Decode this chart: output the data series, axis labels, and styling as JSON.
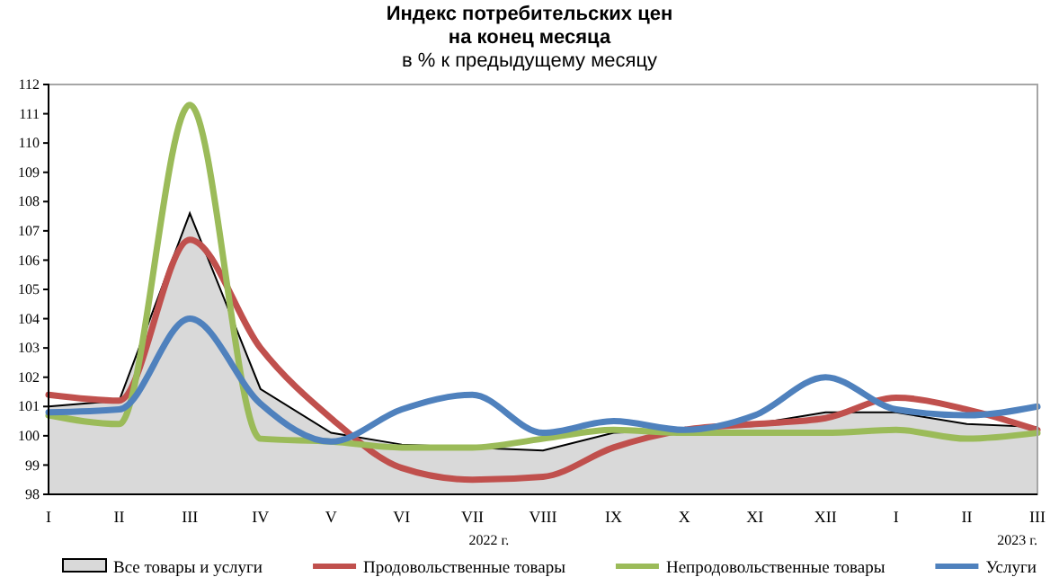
{
  "chart_data": {
    "type": "line",
    "title": "Индекс потребительских цен\nна конец месяца",
    "subtitle": "в % к предыдущему месяцу",
    "categories": [
      "I",
      "II",
      "III",
      "IV",
      "V",
      "VI",
      "VII",
      "VIII",
      "IX",
      "X",
      "XI",
      "XII",
      "I",
      "II",
      "III"
    ],
    "series": [
      {
        "name": "Все товары и услуги",
        "type": "area",
        "color": "#d9d9d9",
        "values": [
          101.0,
          101.2,
          107.6,
          101.6,
          100.1,
          99.7,
          99.6,
          99.5,
          100.1,
          100.2,
          100.4,
          100.8,
          100.8,
          100.4,
          100.3
        ]
      },
      {
        "name": "Продовольственные товары",
        "color": "#c0504d",
        "values": [
          101.4,
          101.2,
          106.7,
          103.0,
          100.6,
          98.9,
          98.5,
          98.6,
          99.6,
          100.2,
          100.4,
          100.6,
          101.3,
          100.9,
          100.2
        ]
      },
      {
        "name": "Непродовольственные товары",
        "color": "#9bbb59",
        "values": [
          100.7,
          100.4,
          111.3,
          99.9,
          99.8,
          99.6,
          99.6,
          99.9,
          100.2,
          100.1,
          100.1,
          100.1,
          100.2,
          99.9,
          100.1
        ]
      },
      {
        "name": "Услуги",
        "color": "#4f81bd",
        "values": [
          100.8,
          100.9,
          104.0,
          101.1,
          99.8,
          100.9,
          101.4,
          100.1,
          100.5,
          100.2,
          100.7,
          102.0,
          100.9,
          100.7,
          101.0
        ]
      }
    ],
    "ylim": [
      98,
      112
    ],
    "yticks": [
      98,
      99,
      100,
      101,
      102,
      103,
      104,
      105,
      106,
      107,
      108,
      109,
      110,
      111,
      112
    ],
    "annotations": [
      "2022 г.",
      "2023 г."
    ],
    "legend": "bottom",
    "grid": false,
    "marker": "none",
    "line_style": "solid"
  }
}
